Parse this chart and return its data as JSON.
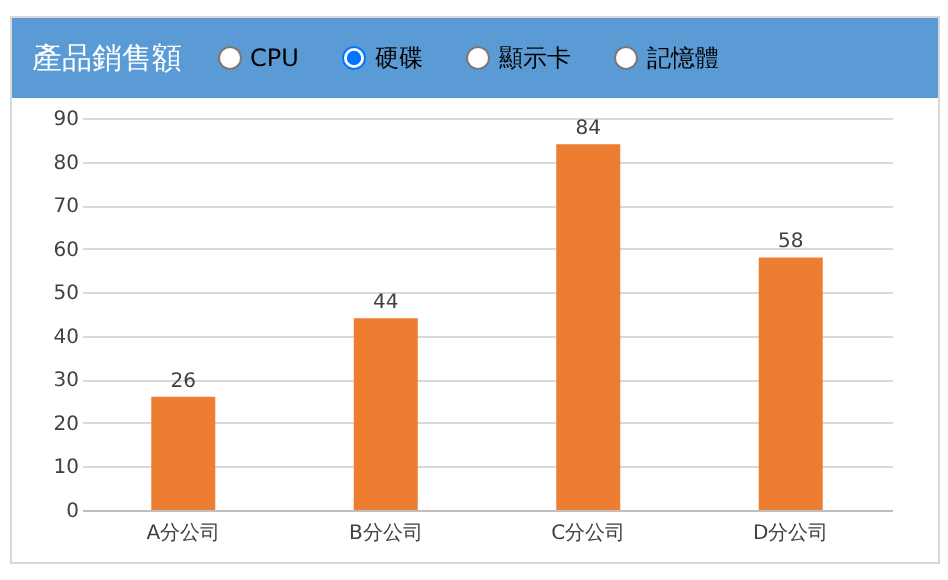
{
  "chart_data": {
    "type": "bar",
    "title": "產品銷售額",
    "annotations": [
      "CPU",
      "硬碟",
      "顯示卡",
      "記憶體"
    ],
    "categories": [
      "A分公司",
      "B分公司",
      "C分公司",
      "D分公司"
    ],
    "values": [
      26,
      44,
      84,
      58
    ],
    "color": "#ed7d31",
    "ylim": [
      0,
      90
    ],
    "yticks": [
      0,
      10,
      20,
      30,
      40,
      50,
      60,
      70,
      80,
      90
    ],
    "grid": "y",
    "data_labels": true
  }
}
